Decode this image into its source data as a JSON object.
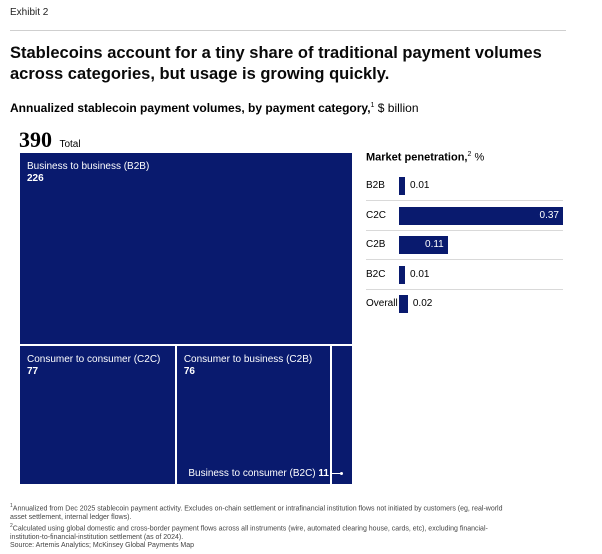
{
  "exhibit": "Exhibit 2",
  "headline": "Stablecoins account for a tiny share of traditional payment volumes across categories, but usage is growing quickly.",
  "subtitle": {
    "bold": "Annualized stablecoin payment volumes, by payment category,",
    "sup": "1",
    "unit": "$ billion"
  },
  "total": {
    "value": "390",
    "label": "Total"
  },
  "penetration": {
    "title_bold": "Market penetration,",
    "title_sup": "2",
    "title_unit": "%"
  },
  "chart_data": [
    {
      "type": "treemap",
      "title": "Annualized stablecoin payment volumes, by payment category, $ billion",
      "total": 390,
      "categories": [
        "Business to business (B2B)",
        "Consumer to consumer (C2C)",
        "Consumer to business (C2B)",
        "Business to consumer (B2C)"
      ],
      "values": [
        226,
        77,
        76,
        11
      ],
      "value_labels": [
        "226",
        "77",
        "76",
        "11"
      ],
      "color": "#091a6e"
    },
    {
      "type": "bar",
      "orientation": "horizontal",
      "title": "Market penetration, %",
      "categories": [
        "B2B",
        "C2C",
        "C2B",
        "B2C",
        "Overall"
      ],
      "values": [
        0.01,
        0.37,
        0.11,
        0.01,
        0.02
      ],
      "value_labels": [
        "0.01",
        "0.37",
        "0.11",
        "0.01",
        "0.02"
      ],
      "xlim": [
        0,
        0.37
      ],
      "color": "#091a6e",
      "grid": false
    }
  ],
  "footnotes": [
    {
      "sup": "1",
      "text": "Annualized from Dec 2025 stablecoin payment activity. Excludes on-chain settlement or intrafinancial institution flows not initiated by customers (eg, real-world asset settlement, internal ledger flows)."
    },
    {
      "sup": "2",
      "text": "Calculated using global domestic and cross-border payment flows across all instruments (wire, automated clearing house, cards, etc), excluding financial-institution-to-financial-institution settlement (as of 2024)."
    },
    {
      "sup": "",
      "text": "Source: Artemis Analytics; McKinsey Global Payments Map"
    }
  ]
}
